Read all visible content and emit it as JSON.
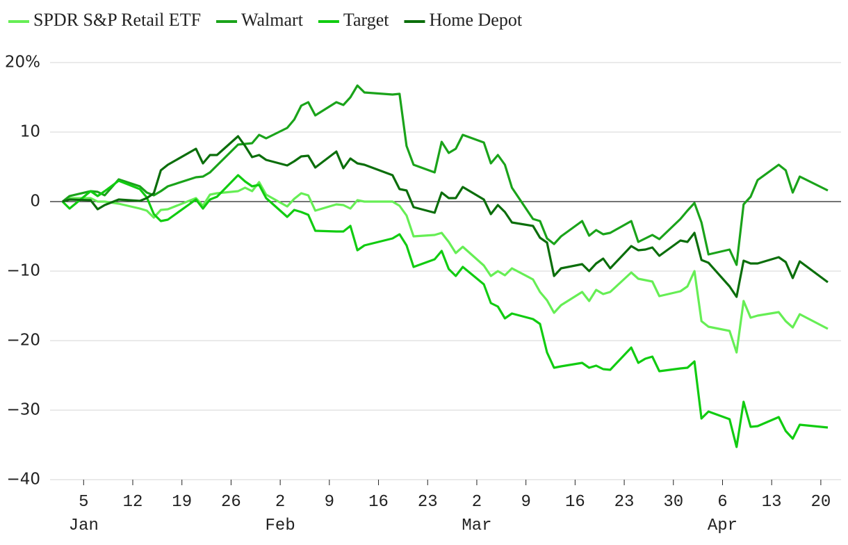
{
  "chart_data": {
    "type": "line",
    "x": [
      "01-02",
      "01-03",
      "01-06",
      "01-07",
      "01-08",
      "01-10",
      "01-13",
      "01-14",
      "01-15",
      "01-16",
      "01-17",
      "01-21",
      "01-22",
      "01-23",
      "01-24",
      "01-27",
      "01-28",
      "01-29",
      "01-30",
      "01-31",
      "02-03",
      "02-04",
      "02-05",
      "02-06",
      "02-07",
      "02-10",
      "02-11",
      "02-12",
      "02-13",
      "02-14",
      "02-18",
      "02-19",
      "02-20",
      "02-21",
      "02-24",
      "02-25",
      "02-26",
      "02-27",
      "02-28",
      "03-03",
      "03-04",
      "03-05",
      "03-06",
      "03-07",
      "03-10",
      "03-11",
      "03-12",
      "03-13",
      "03-14",
      "03-17",
      "03-18",
      "03-19",
      "03-20",
      "03-21",
      "03-24",
      "03-25",
      "03-26",
      "03-27",
      "03-28",
      "03-31",
      "04-01",
      "04-02",
      "04-03",
      "04-04",
      "04-07",
      "04-08",
      "04-09",
      "04-10",
      "04-11",
      "04-14",
      "04-15",
      "04-16",
      "04-17",
      "04-21"
    ],
    "series": [
      {
        "name": "SPDR S&P Retail ETF",
        "color": "#66ee55",
        "values": [
          0,
          0.5,
          0.5,
          0,
          0,
          -0.3,
          -1,
          -1.3,
          -2.3,
          -1.2,
          -1.1,
          0.5,
          -0.6,
          1.0,
          1.2,
          1.5,
          2.0,
          1.5,
          2.8,
          1.0,
          -0.7,
          0.4,
          1.2,
          0.9,
          -1.3,
          -0.4,
          -0.5,
          -1.0,
          0.2,
          0,
          0,
          -0.6,
          -2,
          -5,
          -4.8,
          -4.5,
          -5.8,
          -7.4,
          -6.5,
          -9.2,
          -10.7,
          -10,
          -10.6,
          -9.6,
          -11.2,
          -13,
          -14.2,
          -16,
          -14.9,
          -13,
          -14.3,
          -12.7,
          -13.3,
          -13,
          -10.2,
          -11.1,
          -11.3,
          -11.5,
          -13.6,
          -12.9,
          -12.2,
          -10,
          -17.2,
          -18,
          -18.6,
          -21.7,
          -14.3,
          -16.7,
          -16.4,
          -15.9,
          -17.2,
          -18.1,
          -16.2,
          -18.3
        ]
      },
      {
        "name": "Walmart",
        "color": "#1aa31a",
        "values": [
          0,
          0.8,
          1.5,
          1.4,
          0.9,
          3.2,
          2.2,
          1.3,
          0.9,
          1.5,
          2.2,
          3.5,
          3.6,
          4.2,
          5.2,
          8.2,
          8.3,
          8.4,
          9.6,
          9.1,
          10.6,
          11.8,
          13.8,
          14.3,
          12.4,
          14.3,
          13.9,
          15.0,
          16.7,
          15.7,
          15.4,
          15.5,
          8.0,
          5.3,
          4.2,
          8.6,
          7.0,
          7.6,
          9.6,
          8.5,
          5.5,
          6.7,
          5.3,
          2.0,
          -2.5,
          -2.8,
          -5.3,
          -6.1,
          -5.0,
          -2.8,
          -4.9,
          -4.1,
          -4.7,
          -4.5,
          -2.8,
          -5.8,
          -5.3,
          -4.8,
          -5.4,
          -2.5,
          -1.3,
          -0.2,
          -3.0,
          -7.6,
          -6.9,
          -9.1,
          -0.4,
          0.7,
          3.1,
          5.3,
          4.5,
          1.3,
          3.6,
          1.6
        ]
      },
      {
        "name": "Target",
        "color": "#11cc11",
        "values": [
          0,
          -1,
          1.5,
          0.8,
          1.5,
          3,
          1.8,
          0.6,
          -1.8,
          -2.8,
          -2.6,
          0.3,
          -1,
          0.3,
          0.7,
          3.8,
          2.9,
          2.2,
          2.4,
          0.5,
          -2.2,
          -1.2,
          -1.5,
          -1.9,
          -4.2,
          -4.3,
          -4.3,
          -3.5,
          -7.0,
          -6.3,
          -5.3,
          -4.7,
          -6.3,
          -9.4,
          -8.3,
          -7.1,
          -9.7,
          -10.7,
          -9.4,
          -11.9,
          -14.6,
          -15.1,
          -16.8,
          -16.1,
          -16.9,
          -17.6,
          -21.7,
          -23.9,
          -23.7,
          -23.2,
          -23.9,
          -23.6,
          -24.1,
          -24.2,
          -21,
          -23.2,
          -22.6,
          -22.3,
          -24.4,
          -24,
          -23.9,
          -23,
          -31.2,
          -30.2,
          -31.3,
          -35.3,
          -28.8,
          -32.4,
          -32.3,
          -31,
          -33,
          -34.1,
          -32.1,
          -32.5
        ]
      },
      {
        "name": "Home Depot",
        "color": "#0b6e0b",
        "values": [
          0,
          0.3,
          0.2,
          -1.1,
          -0.5,
          0.3,
          0.1,
          0.5,
          1.2,
          4.5,
          5.3,
          7.6,
          5.5,
          6.7,
          6.7,
          9.4,
          8,
          6.4,
          6.7,
          6,
          5.2,
          5.8,
          6.5,
          6.6,
          4.9,
          7.2,
          4.8,
          6.2,
          5.5,
          5.3,
          3.8,
          1.8,
          1.6,
          -0.8,
          -1.6,
          1.3,
          0.5,
          0.5,
          2.1,
          0.3,
          -1.8,
          -0.5,
          -1.5,
          -3,
          -3.5,
          -5.2,
          -5.9,
          -10.7,
          -9.6,
          -9,
          -10,
          -8.9,
          -8.2,
          -9.6,
          -6.4,
          -7,
          -6.9,
          -6.6,
          -7.8,
          -5.6,
          -5.8,
          -4.5,
          -8.4,
          -8.8,
          -12.2,
          -13.7,
          -8.5,
          -8.9,
          -8.9,
          -8,
          -8.7,
          -11,
          -8.6,
          -11.6
        ]
      }
    ],
    "ylim": [
      -40,
      20
    ],
    "yticks": [
      {
        "value": 20,
        "label": "20%"
      },
      10,
      0,
      {
        "value": -10,
        "label": "−10"
      },
      {
        "value": -20,
        "label": "−20"
      },
      {
        "value": -30,
        "label": "−30"
      },
      {
        "value": -40,
        "label": "−40"
      }
    ],
    "xlim": [
      "01-02",
      "04-21"
    ],
    "xticks": [
      {
        "value": "01-05",
        "label": "5"
      },
      {
        "value": "01-12",
        "label": "12"
      },
      {
        "value": "01-19",
        "label": "19"
      },
      {
        "value": "01-26",
        "label": "26"
      },
      {
        "value": "02-02",
        "label": "2"
      },
      {
        "value": "02-09",
        "label": "9"
      },
      {
        "value": "02-16",
        "label": "16"
      },
      {
        "value": "02-23",
        "label": "23"
      },
      {
        "value": "03-02",
        "label": "2"
      },
      {
        "value": "03-09",
        "label": "9"
      },
      {
        "value": "03-16",
        "label": "16"
      },
      {
        "value": "03-23",
        "label": "23"
      },
      {
        "value": "03-30",
        "label": "30"
      },
      {
        "value": "04-06",
        "label": "6"
      },
      {
        "value": "04-13",
        "label": "13"
      },
      {
        "value": "04-20",
        "label": "20"
      }
    ],
    "x_month_labels": [
      {
        "value": "01-05",
        "label": "Jan"
      },
      {
        "value": "02-02",
        "label": "Feb"
      },
      {
        "value": "03-02",
        "label": "Mar"
      },
      {
        "value": "04-06",
        "label": "Apr"
      }
    ],
    "grid": true,
    "legend": "top"
  }
}
